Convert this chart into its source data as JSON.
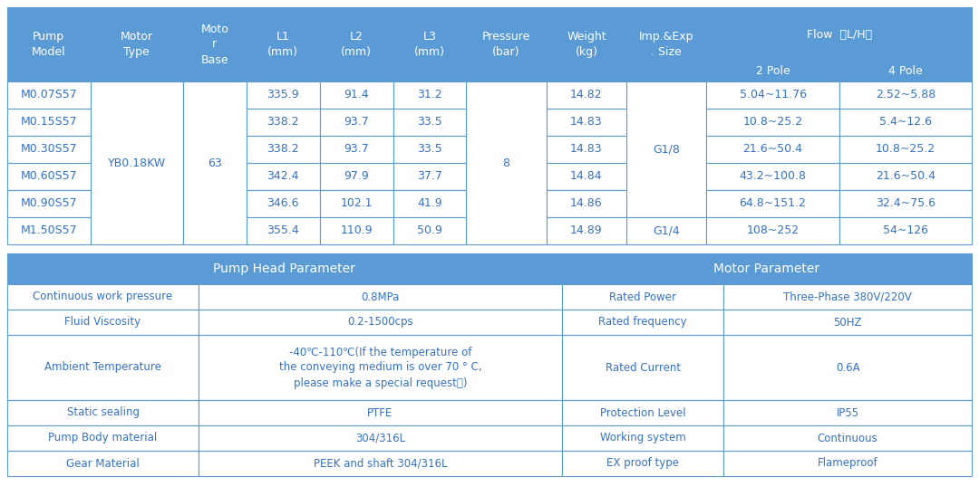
{
  "header_bg": "#5B9BD5",
  "header_text": "#FFFFFF",
  "cell_bg": "#FFFFFF",
  "cell_text": "#3671C6",
  "border_color": "#5B9BD5",
  "table1_rows": [
    [
      "M0.07S57",
      "335.9",
      "91.4",
      "31.2",
      "14.82",
      "5.04~11.76",
      "2.52~5.88"
    ],
    [
      "M0.15S57",
      "338.2",
      "93.7",
      "33.5",
      "14.83",
      "10.8~25.2",
      "5.4~12.6"
    ],
    [
      "M0.30S57",
      "338.2",
      "93.7",
      "33.5",
      "14.83",
      "21.6~50.4",
      "10.8~25.2"
    ],
    [
      "M0.60S57",
      "342.4",
      "97.9",
      "37.7",
      "14.84",
      "43.2~100.8",
      "21.6~50.4"
    ],
    [
      "M0.90S57",
      "346.6",
      "102.1",
      "41.9",
      "14.86",
      "64.8~151.2",
      "32.4~75.6"
    ],
    [
      "M1.50S57",
      "355.4",
      "110.9",
      "50.9",
      "14.89",
      "108~252",
      "54~126"
    ]
  ],
  "table2_rows": [
    [
      "Continuous work pressure",
      "0.8MPa",
      "Rated Power",
      "Three-Phase 380V/220V"
    ],
    [
      "Fluid Viscosity",
      "0.2-1500cps",
      "Rated frequency",
      "50HZ"
    ],
    [
      "Ambient Temperature",
      "-40℃-110℃(If the temperature of\nthe conveying medium is over 70 ° C,\nplease make a special request。)",
      "Rated Current",
      "0.6A"
    ],
    [
      "Static sealing",
      "PTFE",
      "Protection Level",
      "IP55"
    ],
    [
      "Pump Body material",
      "304/316L",
      "Working system",
      "Continuous"
    ],
    [
      "Gear Material",
      "PEEK and shaft 304/316L",
      "EX proof type",
      "Flameproof"
    ]
  ]
}
